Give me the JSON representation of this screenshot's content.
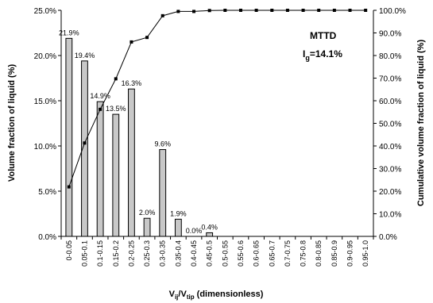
{
  "chart_data": {
    "type": "bar",
    "categories": [
      "0-0.05",
      "0.05-0.1",
      "0.1-0.15",
      "0.15-0.2",
      "0.2-0.25",
      "0.25-0.3",
      "0.3-0.35",
      "0.35-0.4",
      "0.4-0.45",
      "0.45-0.5",
      "0.5-0.55",
      "0.55-0.6",
      "0.6-0.65",
      "0.65-0.7",
      "0.7-0.75",
      "0.75-0.8",
      "0.8-0.85",
      "0.85-0.9",
      "0.9-0.95",
      "0.95-1.0"
    ],
    "bar_values": [
      21.9,
      19.4,
      14.9,
      13.5,
      16.3,
      2.0,
      9.6,
      1.9,
      0.0,
      0.4,
      0,
      0,
      0,
      0,
      0,
      0,
      0,
      0,
      0,
      0
    ],
    "bar_labels": [
      "21.9%",
      "19.4%",
      "14.9%",
      "13.5%",
      "16.3%",
      "2.0%",
      "9.6%",
      "1.9%",
      "0.0%",
      "0.4%",
      "",
      "",
      "",
      "",
      "",
      "",
      "",
      "",
      "",
      ""
    ],
    "cumulative_values": [
      21.9,
      41.3,
      56.2,
      69.7,
      86.0,
      88.0,
      97.6,
      99.5,
      99.5,
      99.9,
      100,
      100,
      100,
      100,
      100,
      100,
      100,
      100,
      100,
      100
    ],
    "ylabel": "Volume fraction of liquid (%)",
    "y2label": "Cumulative volume fraction of liquid (%)",
    "xlabel_main": "V",
    "xlabel_sub1": "ij",
    "xlabel_mid": "/V",
    "xlabel_sub2": "tip",
    "xlabel_tail": " (dimensionless)",
    "ylim": [
      0,
      25
    ],
    "y2lim": [
      0,
      100
    ],
    "yticks": [
      "0.0%",
      "5.0%",
      "10.0%",
      "15.0%",
      "20.0%",
      "25.0%"
    ],
    "y2ticks": [
      "0.0%",
      "10.0%",
      "20.0%",
      "30.0%",
      "40.0%",
      "50.0%",
      "60.0%",
      "70.0%",
      "80.0%",
      "90.0%",
      "100.0%"
    ],
    "annotation_title": "MTTD",
    "annotation_main": "I",
    "annotation_sub": "g",
    "annotation_tail": "=14.1%",
    "colors": {
      "bar_fill": "#c8c8c8",
      "bar_stroke": "#000000",
      "line": "#000000"
    }
  }
}
